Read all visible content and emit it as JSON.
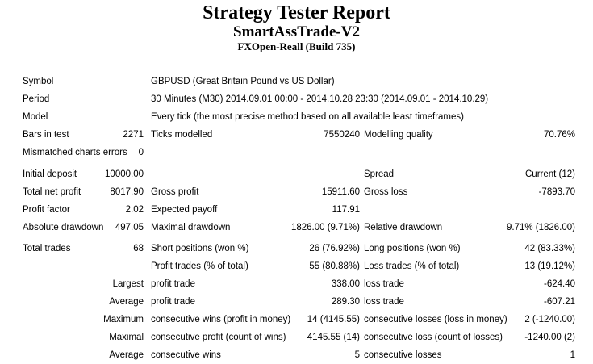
{
  "header": {
    "title": "Strategy Tester Report",
    "subtitle": "SmartAssTrade-V2",
    "build": "FXOpen-Reall (Build 735)"
  },
  "colors": {
    "text": "#000000",
    "background": "#ffffff"
  },
  "table": {
    "columns": [
      "label-1",
      "value-1",
      "label-2",
      "value-2",
      "label-3",
      "value-3"
    ],
    "rows": [
      {
        "l1": "Symbol",
        "v1": "",
        "l2": "GBPUSD (Great Britain Pound vs US Dollar)",
        "v2": "",
        "l3": "",
        "v3": ""
      },
      {
        "l1": "Period",
        "v1": "",
        "l2": "30 Minutes (M30) 2014.09.01 00:00 - 2014.10.28 23:30 (2014.09.01 - 2014.10.29)",
        "v2": "",
        "l3": "",
        "v3": ""
      },
      {
        "l1": "Model",
        "v1": "",
        "l2": "Every tick (the most precise method based on all available least timeframes)",
        "v2": "",
        "l3": "",
        "v3": ""
      },
      {
        "l1": "Bars in test",
        "v1": "2271",
        "l2": "Ticks modelled",
        "v2": "7550240",
        "l3": "Modelling quality",
        "v3": "70.76%"
      },
      {
        "l1": "Mismatched charts errors",
        "v1": "0",
        "l2": "",
        "v2": "",
        "l3": "",
        "v3": ""
      },
      {
        "l1": "Initial deposit",
        "v1": "10000.00",
        "l2": "",
        "v2": "",
        "l3": "Spread",
        "v3": "Current (12)"
      },
      {
        "l1": "Total net profit",
        "v1": "8017.90",
        "l2": "Gross profit",
        "v2": "15911.60",
        "l3": "Gross loss",
        "v3": "-7893.70"
      },
      {
        "l1": "Profit factor",
        "v1": "2.02",
        "l2": "Expected payoff",
        "v2": "117.91",
        "l3": "",
        "v3": ""
      },
      {
        "l1": "Absolute drawdown",
        "v1": "497.05",
        "l2": "Maximal drawdown",
        "v2": "1826.00 (9.71%)",
        "l3": "Relative drawdown",
        "v3": "9.71% (1826.00)"
      },
      {
        "l1": "Total trades",
        "v1": "68",
        "l2": "Short positions (won %)",
        "v2": "26 (76.92%)",
        "l3": "Long positions (won %)",
        "v3": "42 (83.33%)"
      },
      {
        "l1": "",
        "v1": "",
        "l2": "Profit trades (% of total)",
        "v2": "55 (80.88%)",
        "l3": "Loss trades (% of total)",
        "v3": "13 (19.12%)"
      },
      {
        "l1": "",
        "v1": "Largest",
        "l2": "profit trade",
        "v2": "338.00",
        "l3": "loss trade",
        "v3": "-624.40"
      },
      {
        "l1": "",
        "v1": "Average",
        "l2": "profit trade",
        "v2": "289.30",
        "l3": "loss trade",
        "v3": "-607.21"
      },
      {
        "l1": "",
        "v1": "Maximum",
        "l2": "consecutive wins (profit in money)",
        "v2": "14 (4145.55)",
        "l3": "consecutive losses (loss in money)",
        "v3": "2 (-1240.00)"
      },
      {
        "l1": "",
        "v1": "Maximal",
        "l2": "consecutive profit (count of wins)",
        "v2": "4145.55 (14)",
        "l3": "consecutive loss (count of losses)",
        "v3": "-1240.00 (2)"
      },
      {
        "l1": "",
        "v1": "Average",
        "l2": "consecutive wins",
        "v2": "5",
        "l3": "consecutive losses",
        "v3": "1"
      }
    ]
  }
}
